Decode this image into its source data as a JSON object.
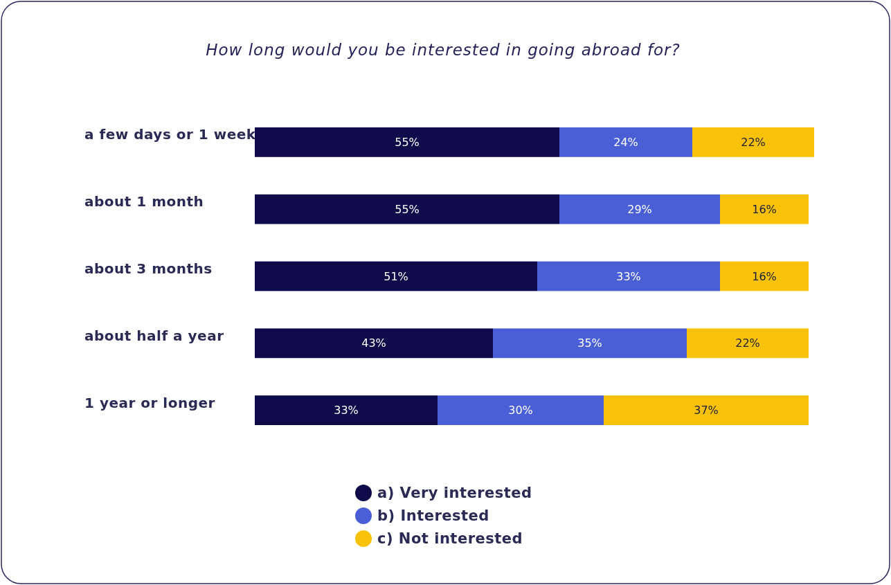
{
  "chart_data": {
    "type": "bar",
    "title": "How long would you be interested in going abroad for?",
    "orientation": "horizontal",
    "stacked": true,
    "categories": [
      "a few days or 1 week",
      "about 1 month",
      "about 3 months",
      "about half a year",
      "1 year or longer"
    ],
    "series": [
      {
        "name": "a) Very interested",
        "color": "#0f0a4a",
        "values": [
          55,
          55,
          51,
          43,
          33
        ],
        "value_labels": [
          "55%",
          "55%",
          "51%",
          "43%",
          "33%"
        ]
      },
      {
        "name": "b) Interested",
        "color": "#4a5fd6",
        "values": [
          24,
          29,
          33,
          35,
          30
        ],
        "value_labels": [
          "24%",
          "29%",
          "33%",
          "35%",
          "30%"
        ]
      },
      {
        "name": "c) Not interested",
        "color": "#f8c20a",
        "values": [
          22,
          16,
          16,
          22,
          37
        ],
        "value_labels": [
          "22%",
          "16%",
          "16%",
          "22%",
          "37%"
        ]
      }
    ],
    "legend": "bottom",
    "tick_labels": "y"
  }
}
